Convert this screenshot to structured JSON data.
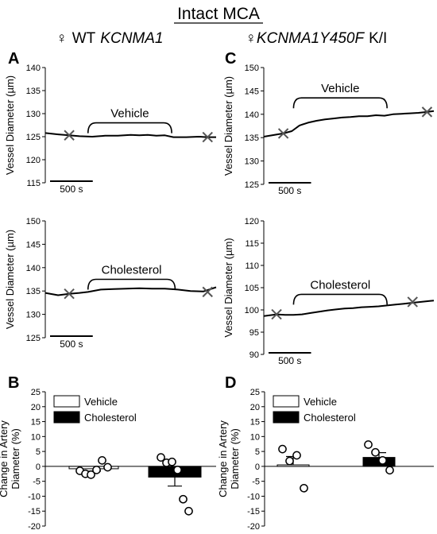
{
  "figure": {
    "title": "Intact MCA",
    "col_left": {
      "symbol": "♀",
      "prefix": "WT",
      "gene": "KCNMA1",
      "suffix": ""
    },
    "col_right": {
      "symbol": "♀",
      "prefix": "",
      "gene": "KCNMA1Y450F",
      "suffix": "K/I"
    }
  },
  "chart_data": [
    {
      "id": "A_top",
      "type": "line",
      "panel_label": "A",
      "ylabel": "Vessel Diameter (µm)",
      "ylim": [
        115,
        140
      ],
      "yticks": [
        115,
        120,
        125,
        130,
        135,
        140
      ],
      "bracket_label": "Vehicle",
      "scale_bar": "500 s",
      "x_range": [
        0,
        2000
      ],
      "bracket": {
        "x_start": 500,
        "x_end": 1480,
        "y": 128
      },
      "scale_bar_range": [
        0,
        500
      ],
      "markers": [
        {
          "x": 280,
          "y": 125.3
        },
        {
          "x": 1900,
          "y": 124.9
        }
      ],
      "series": [
        {
          "x": [
            0,
            150,
            280,
            400,
            550,
            700,
            850,
            1000,
            1100,
            1200,
            1300,
            1400,
            1500,
            1650,
            1800,
            1900,
            2000
          ],
          "y": [
            125.8,
            125.5,
            125.3,
            125.1,
            125.0,
            125.2,
            125.2,
            125.4,
            125.3,
            125.4,
            125.2,
            125.3,
            124.9,
            124.9,
            125.0,
            124.9,
            124.9
          ]
        }
      ]
    },
    {
      "id": "A_bottom",
      "type": "line",
      "panel_label": "",
      "ylabel": "Vessel Diameter (µm)",
      "ylim": [
        125,
        150
      ],
      "yticks": [
        125,
        130,
        135,
        140,
        145,
        150
      ],
      "bracket_label": "Cholesterol",
      "scale_bar": "500 s",
      "x_range": [
        0,
        2000
      ],
      "bracket": {
        "x_start": 500,
        "x_end": 1520,
        "y": 137.5
      },
      "scale_bar_range": [
        0,
        500
      ],
      "markers": [
        {
          "x": 280,
          "y": 134.4
        },
        {
          "x": 1900,
          "y": 134.8
        }
      ],
      "series": [
        {
          "x": [
            0,
            150,
            280,
            400,
            500,
            650,
            800,
            950,
            1100,
            1250,
            1400,
            1550,
            1700,
            1850,
            2000
          ],
          "y": [
            134.6,
            134.1,
            134.4,
            134.6,
            134.8,
            135.3,
            135.4,
            135.5,
            135.6,
            135.5,
            135.5,
            135.3,
            135.0,
            134.9,
            135.8
          ]
        }
      ]
    },
    {
      "id": "C_top",
      "type": "line",
      "panel_label": "C",
      "ylabel": "Vessel Diameter (µm)",
      "ylim": [
        125,
        150
      ],
      "yticks": [
        125,
        130,
        135,
        140,
        145,
        150
      ],
      "bracket_label": "Vehicle",
      "scale_bar": "500 s",
      "x_range": [
        0,
        2000
      ],
      "bracket": {
        "x_start": 350,
        "x_end": 1450,
        "y": 143.5
      },
      "scale_bar_range": [
        0,
        500
      ],
      "markers": [
        {
          "x": 230,
          "y": 135.9
        },
        {
          "x": 1920,
          "y": 140.5
        }
      ],
      "series": [
        {
          "x": [
            0,
            230,
            330,
            420,
            520,
            620,
            720,
            820,
            920,
            1020,
            1120,
            1220,
            1320,
            1420,
            1520,
            1620,
            1720,
            1820,
            1920,
            2000
          ],
          "y": [
            135.2,
            135.9,
            136.4,
            137.6,
            138.2,
            138.6,
            138.9,
            139.1,
            139.3,
            139.4,
            139.6,
            139.6,
            139.8,
            139.7,
            140.0,
            140.1,
            140.2,
            140.3,
            140.5,
            140.7
          ]
        }
      ]
    },
    {
      "id": "C_bottom",
      "type": "line",
      "panel_label": "",
      "ylabel": "Vessel Diameter (µm)",
      "ylim": [
        90,
        120
      ],
      "yticks": [
        90,
        95,
        100,
        105,
        110,
        115,
        120
      ],
      "bracket_label": "Cholesterol",
      "scale_bar": "500 s",
      "x_range": [
        0,
        2000
      ],
      "bracket": {
        "x_start": 350,
        "x_end": 1450,
        "y": 103.5
      },
      "scale_bar_range": [
        0,
        500
      ],
      "markers": [
        {
          "x": 150,
          "y": 99.0
        },
        {
          "x": 1750,
          "y": 101.8
        }
      ],
      "series": [
        {
          "x": [
            0,
            150,
            250,
            350,
            450,
            550,
            650,
            750,
            850,
            950,
            1050,
            1150,
            1250,
            1350,
            1450,
            1550,
            1650,
            1750,
            1850,
            1950,
            2000
          ],
          "y": [
            98.6,
            99.0,
            98.9,
            98.9,
            99.0,
            99.3,
            99.6,
            99.9,
            100.1,
            100.3,
            100.4,
            100.6,
            100.7,
            100.8,
            101.0,
            101.2,
            101.4,
            101.6,
            101.8,
            102.0,
            102.1
          ]
        }
      ]
    },
    {
      "id": "B",
      "type": "bar",
      "panel_label": "B",
      "ylabel": "Change in Artery Diameter (%)",
      "ylim": [
        -20,
        25
      ],
      "yticks": [
        -20,
        -15,
        -10,
        -5,
        0,
        5,
        10,
        15,
        20,
        25
      ],
      "categories": [
        "Vehicle",
        "Cholesterol"
      ],
      "values": [
        -0.8,
        -3.6
      ],
      "sem": [
        0.8,
        3.0
      ],
      "colors": [
        "#ffffff",
        "#000000"
      ],
      "points": [
        [
          -1.5,
          -2.5,
          -2.8,
          -1.2,
          2.0,
          -0.3
        ],
        [
          3.0,
          1.2,
          1.5,
          -1.2,
          -11.0,
          -15.0
        ]
      ],
      "legend": [
        {
          "label": "Vehicle",
          "color": "#ffffff"
        },
        {
          "label": "Cholesterol",
          "color": "#000000"
        }
      ]
    },
    {
      "id": "D",
      "type": "bar",
      "panel_label": "D",
      "ylabel": "Change in Artery Diameter (%)",
      "ylim": [
        -20,
        25
      ],
      "yticks": [
        -20,
        -15,
        -10,
        -5,
        0,
        5,
        10,
        15,
        20,
        25
      ],
      "categories": [
        "Vehicle",
        "Cholesterol"
      ],
      "values": [
        0.5,
        3.0
      ],
      "sem": [
        2.8,
        1.6
      ],
      "colors": [
        "#ffffff",
        "#000000"
      ],
      "points": [
        [
          5.8,
          1.8,
          3.7,
          -7.3
        ],
        [
          7.3,
          4.7,
          2.0,
          -1.3
        ]
      ],
      "legend": [
        {
          "label": "Vehicle",
          "color": "#ffffff"
        },
        {
          "label": "Cholesterol",
          "color": "#000000"
        }
      ]
    }
  ]
}
